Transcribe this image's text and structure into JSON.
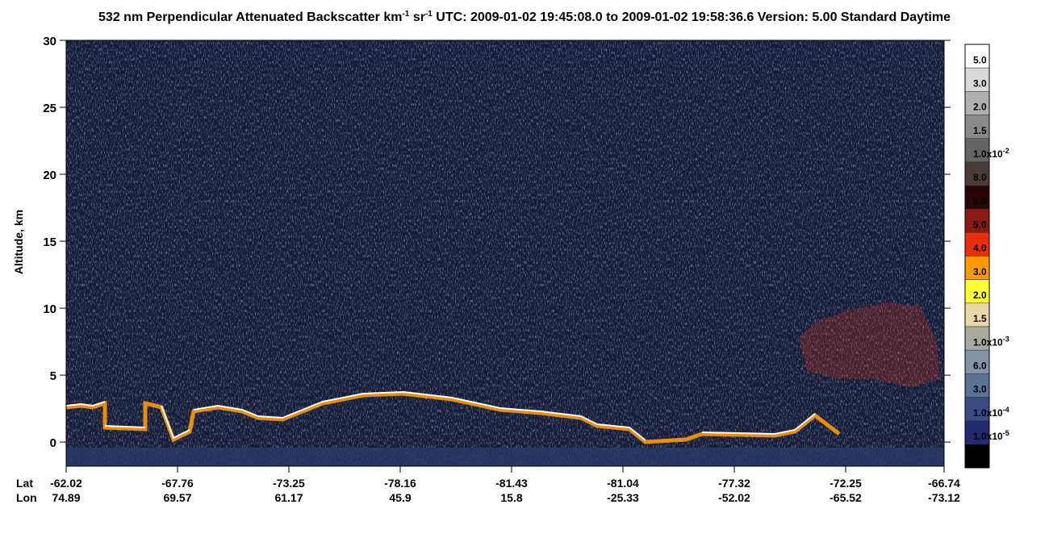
{
  "chart_data": {
    "type": "heatmap",
    "title": [
      "532 nm Perpendicular Attenuated Backscatter km",
      "-1",
      " sr",
      "-1",
      "  UTC: 2009-01-02 19:45:08.0 to 2009-01-02 19:58:36.6  Version: 5.00 Standard Daytime"
    ],
    "y_label": "Altitude, km",
    "ylim": [
      -1.8,
      30
    ],
    "yticks": [
      0,
      5,
      10,
      15,
      20,
      25,
      30
    ],
    "x_row_labels": [
      "Lat",
      "Lon"
    ],
    "lat": [
      -62.02,
      -67.76,
      -73.25,
      -78.16,
      -81.43,
      -81.04,
      -77.32,
      -72.25,
      -66.74
    ],
    "lon": [
      74.89,
      69.57,
      61.17,
      45.9,
      15.8,
      -25.33,
      -52.02,
      -65.52,
      -73.12
    ],
    "colorbar": {
      "levels": [
        {
          "value": 0.05,
          "label": "5.0"
        },
        {
          "value": 0.03,
          "label": "3.0"
        },
        {
          "value": 0.02,
          "label": "2.0"
        },
        {
          "value": 0.015,
          "label": "1.5"
        },
        {
          "value": 0.01,
          "label": "1.0x10",
          "sup": "-2"
        },
        {
          "value": 0.008,
          "label": "8.0"
        },
        {
          "value": 0.006,
          "label": "6.0"
        },
        {
          "value": 0.005,
          "label": "5.0"
        },
        {
          "value": 0.004,
          "label": "4.0"
        },
        {
          "value": 0.003,
          "label": "3.0"
        },
        {
          "value": 0.002,
          "label": "2.0"
        },
        {
          "value": 0.0015,
          "label": "1.5"
        },
        {
          "value": 0.001,
          "label": "1.0x10",
          "sup": "-3"
        },
        {
          "value": 0.0006,
          "label": "6.0"
        },
        {
          "value": 0.0003,
          "label": "3.0"
        },
        {
          "value": 0.0001,
          "label": "1.0x10",
          "sup": "-4"
        },
        {
          "value": 1e-05,
          "label": "1.0x10",
          "sup": "-5"
        },
        null
      ],
      "colors": [
        "#ffffff",
        "#d9d9d9",
        "#b0b0b0",
        "#8a8a8a",
        "#646464",
        "#4a3c38",
        "#2c0606",
        "#8a1a12",
        "#e8300e",
        "#ff9a00",
        "#ffff3a",
        "#ead8a8",
        "#a8aaa0",
        "#8294a6",
        "#5a7294",
        "#3a4c82",
        "#242a70",
        "#000000"
      ]
    }
  }
}
